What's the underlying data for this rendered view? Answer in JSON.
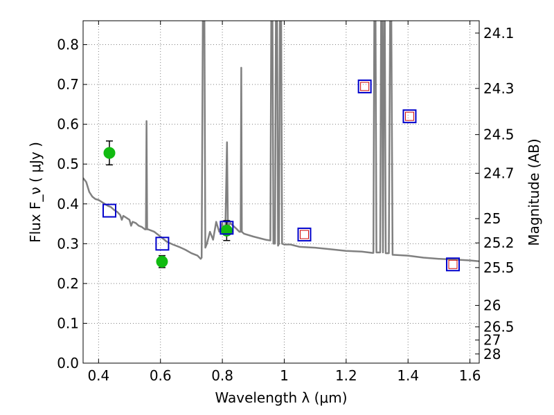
{
  "chart_data": {
    "type": "scatter",
    "title": "",
    "xlabel": "Wavelength  λ (μm)",
    "ylabel": "Flux  F_ν  ( μJy )",
    "ylabel2": "Magnitude (AB)",
    "xlim": [
      0.35,
      1.63
    ],
    "ylim": [
      0.0,
      0.86
    ],
    "grid": true,
    "x_ticks": [
      {
        "value": 0.4,
        "label": "0.4"
      },
      {
        "value": 0.6,
        "label": "0.6"
      },
      {
        "value": 0.8,
        "label": "0.8"
      },
      {
        "value": 1.0,
        "label": "1"
      },
      {
        "value": 1.2,
        "label": "1.2"
      },
      {
        "value": 1.4,
        "label": "1.4"
      },
      {
        "value": 1.6,
        "label": "1.6"
      }
    ],
    "y_ticks": [
      {
        "value": 0.0,
        "label": "0.0"
      },
      {
        "value": 0.1,
        "label": "0.1"
      },
      {
        "value": 0.2,
        "label": "0.2"
      },
      {
        "value": 0.3,
        "label": "0.3"
      },
      {
        "value": 0.4,
        "label": "0.4"
      },
      {
        "value": 0.5,
        "label": "0.5"
      },
      {
        "value": 0.6,
        "label": "0.6"
      },
      {
        "value": 0.7,
        "label": "0.7"
      },
      {
        "value": 0.8,
        "label": "0.8"
      }
    ],
    "y2_ticks": [
      {
        "flux": 0.829,
        "label": "24.1"
      },
      {
        "flux": 0.69,
        "label": "24.3"
      },
      {
        "flux": 0.574,
        "label": "24.5"
      },
      {
        "flux": 0.477,
        "label": "24.7"
      },
      {
        "flux": 0.363,
        "label": "25"
      },
      {
        "flux": 0.302,
        "label": "25.2"
      },
      {
        "flux": 0.24,
        "label": "25.5"
      },
      {
        "flux": 0.145,
        "label": "26"
      },
      {
        "flux": 0.091,
        "label": "26.5"
      },
      {
        "flux": 0.058,
        "label": "27"
      },
      {
        "flux": 0.023,
        "label": "28"
      }
    ],
    "colors": {
      "spectrum": "#808080",
      "observed": "#11bb11",
      "model_outer": "#0000cc",
      "model_inner": "#cc0000",
      "grid": "#7f7f7f"
    },
    "series": [
      {
        "kind": "spectrum-line",
        "points": [
          [
            0.35,
            0.465
          ],
          [
            0.36,
            0.455
          ],
          [
            0.37,
            0.43
          ],
          [
            0.38,
            0.418
          ],
          [
            0.39,
            0.412
          ],
          [
            0.4,
            0.41
          ],
          [
            0.41,
            0.405
          ],
          [
            0.42,
            0.4
          ],
          [
            0.43,
            0.395
          ],
          [
            0.44,
            0.392
          ],
          [
            0.45,
            0.385
          ],
          [
            0.46,
            0.38
          ],
          [
            0.47,
            0.372
          ],
          [
            0.475,
            0.36
          ],
          [
            0.48,
            0.37
          ],
          [
            0.49,
            0.365
          ],
          [
            0.5,
            0.36
          ],
          [
            0.505,
            0.345
          ],
          [
            0.51,
            0.355
          ],
          [
            0.52,
            0.352
          ],
          [
            0.53,
            0.345
          ],
          [
            0.54,
            0.342
          ],
          [
            0.55,
            0.336
          ],
          [
            0.553,
            0.336
          ],
          [
            0.555,
            0.608
          ],
          [
            0.557,
            0.336
          ],
          [
            0.56,
            0.336
          ],
          [
            0.58,
            0.33
          ],
          [
            0.6,
            0.318
          ],
          [
            0.62,
            0.305
          ],
          [
            0.64,
            0.298
          ],
          [
            0.66,
            0.292
          ],
          [
            0.68,
            0.285
          ],
          [
            0.7,
            0.276
          ],
          [
            0.72,
            0.27
          ],
          [
            0.73,
            0.262
          ],
          [
            0.733,
            0.265
          ],
          [
            0.737,
            0.86
          ],
          [
            0.742,
            0.86
          ],
          [
            0.745,
            0.29
          ],
          [
            0.75,
            0.3
          ],
          [
            0.76,
            0.33
          ],
          [
            0.77,
            0.31
          ],
          [
            0.78,
            0.355
          ],
          [
            0.79,
            0.33
          ],
          [
            0.8,
            0.352
          ],
          [
            0.805,
            0.325
          ],
          [
            0.81,
            0.35
          ],
          [
            0.815,
            0.555
          ],
          [
            0.818,
            0.34
          ],
          [
            0.825,
            0.352
          ],
          [
            0.835,
            0.345
          ],
          [
            0.845,
            0.338
          ],
          [
            0.855,
            0.33
          ],
          [
            0.859,
            0.33
          ],
          [
            0.861,
            0.742
          ],
          [
            0.863,
            0.33
          ],
          [
            0.87,
            0.325
          ],
          [
            0.9,
            0.318
          ],
          [
            0.94,
            0.31
          ],
          [
            0.955,
            0.308
          ],
          [
            0.958,
            0.86
          ],
          [
            0.962,
            0.86
          ],
          [
            0.965,
            0.3
          ],
          [
            0.97,
            0.3
          ],
          [
            0.973,
            0.86
          ],
          [
            0.977,
            0.86
          ],
          [
            0.98,
            0.295
          ],
          [
            0.983,
            0.3
          ],
          [
            0.986,
            0.86
          ],
          [
            0.99,
            0.86
          ],
          [
            0.993,
            0.3
          ],
          [
            1.0,
            0.298
          ],
          [
            1.02,
            0.298
          ],
          [
            1.05,
            0.292
          ],
          [
            1.1,
            0.29
          ],
          [
            1.15,
            0.286
          ],
          [
            1.2,
            0.282
          ],
          [
            1.25,
            0.28
          ],
          [
            1.285,
            0.277
          ],
          [
            1.288,
            0.277
          ],
          [
            1.291,
            0.86
          ],
          [
            1.295,
            0.86
          ],
          [
            1.298,
            0.278
          ],
          [
            1.31,
            0.278
          ],
          [
            1.313,
            0.86
          ],
          [
            1.316,
            0.86
          ],
          [
            1.319,
            0.278
          ],
          [
            1.322,
            0.86
          ],
          [
            1.325,
            0.86
          ],
          [
            1.328,
            0.276
          ],
          [
            1.338,
            0.276
          ],
          [
            1.342,
            0.86
          ],
          [
            1.346,
            0.86
          ],
          [
            1.35,
            0.272
          ],
          [
            1.4,
            0.27
          ],
          [
            1.45,
            0.265
          ],
          [
            1.5,
            0.262
          ],
          [
            1.55,
            0.26
          ],
          [
            1.6,
            0.258
          ],
          [
            1.63,
            0.256
          ]
        ]
      },
      {
        "kind": "observed-photometry",
        "points": [
          {
            "x": 0.435,
            "y": 0.528,
            "err": 0.03
          },
          {
            "x": 0.605,
            "y": 0.255,
            "err": 0.015
          },
          {
            "x": 0.814,
            "y": 0.333,
            "err": 0.025
          }
        ]
      },
      {
        "kind": "model-photometry",
        "points": [
          {
            "x": 0.435,
            "y": 0.383,
            "inner": false
          },
          {
            "x": 0.606,
            "y": 0.3,
            "inner": false
          },
          {
            "x": 0.814,
            "y": 0.34,
            "inner": false
          },
          {
            "x": 1.065,
            "y": 0.323,
            "inner": true
          },
          {
            "x": 1.26,
            "y": 0.695,
            "inner": true
          },
          {
            "x": 1.405,
            "y": 0.62,
            "inner": true
          },
          {
            "x": 1.545,
            "y": 0.248,
            "inner": true
          }
        ]
      }
    ]
  }
}
